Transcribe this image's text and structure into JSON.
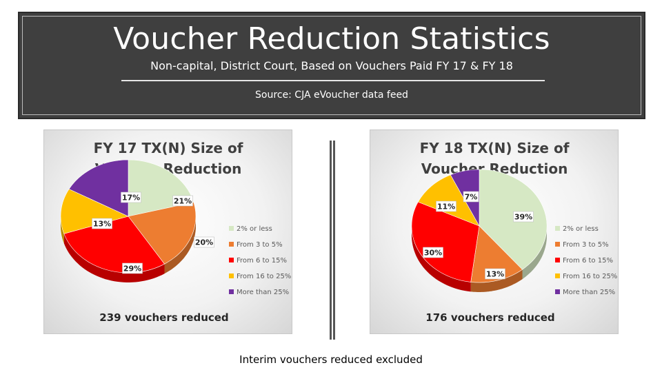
{
  "header": {
    "title": "Voucher Reduction Statistics",
    "subtitle": "Non-capital, District Court, Based on Vouchers Paid FY 17 & FY 18",
    "source": "Source:  CJA eVoucher data feed"
  },
  "footnote": "Interim vouchers reduced excluded",
  "chart_data": [
    {
      "type": "pie",
      "title_lines": [
        "FY 17 TX(N) Size of",
        "Voucher Reduction"
      ],
      "categories": [
        "2% or less",
        "From 3 to 5%",
        "From 6 to 15%",
        "From 16 to 25%",
        "More than 25%"
      ],
      "values": [
        21,
        20,
        29,
        13,
        17
      ],
      "labels": [
        "21%",
        "20%",
        "29%",
        "13%",
        "17%"
      ],
      "colors": [
        "#d6e8c4",
        "#ed7d31",
        "#ff0000",
        "#ffc000",
        "#7030a0"
      ],
      "legend_position": "right",
      "count_label": "239 vouchers reduced"
    },
    {
      "type": "pie",
      "title_lines": [
        "FY 18 TX(N) Size of",
        "Voucher Reduction"
      ],
      "categories": [
        "2% or less",
        "From 3 to 5%",
        "From 6 to 15%",
        "From 16 to 25%",
        "More than 25%"
      ],
      "values": [
        39,
        13,
        30,
        11,
        7
      ],
      "labels": [
        "39%",
        "13%",
        "30%",
        "11%",
        "7%"
      ],
      "colors": [
        "#d6e8c4",
        "#ed7d31",
        "#ff0000",
        "#ffc000",
        "#7030a0"
      ],
      "legend_position": "right",
      "count_label": "176 vouchers reduced"
    }
  ]
}
